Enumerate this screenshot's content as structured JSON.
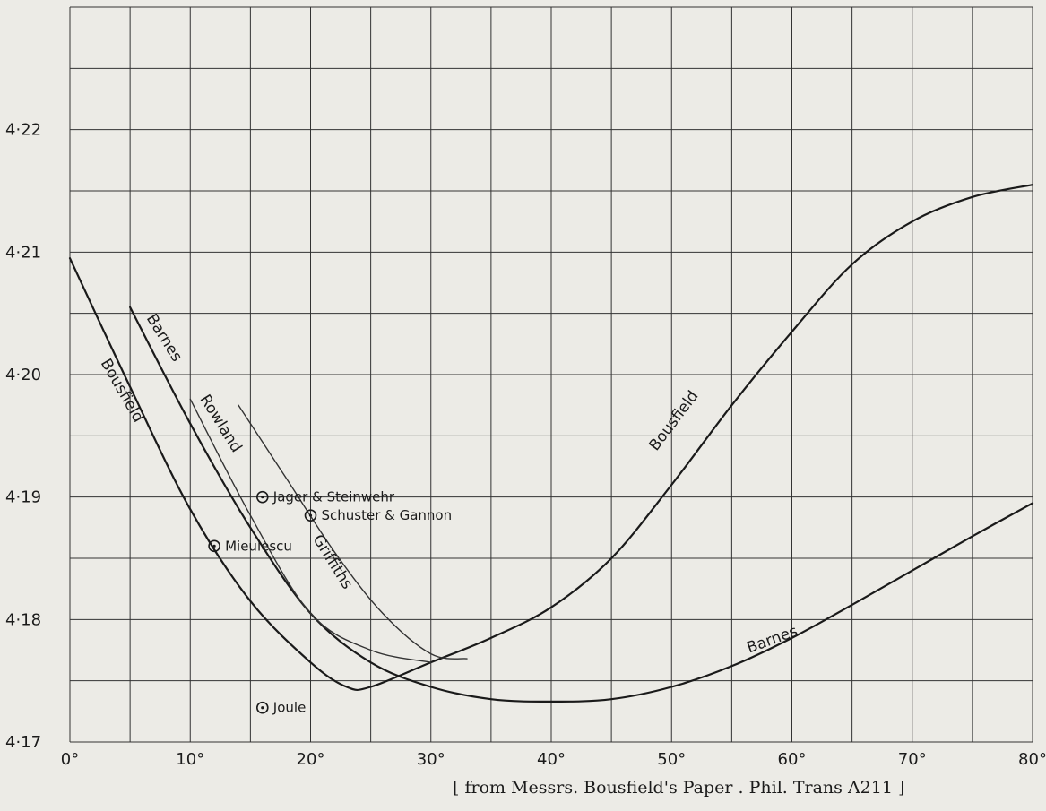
{
  "chart_data": {
    "type": "line",
    "title": "",
    "xlabel": "",
    "ylabel": "",
    "xlim": [
      0,
      80
    ],
    "ylim": [
      4.17,
      4.23
    ],
    "grid": true,
    "x_ticks": [
      "0°",
      "10°",
      "20°",
      "30°",
      "40°",
      "50°",
      "60°",
      "70°",
      "80°"
    ],
    "y_ticks": [
      "4·17",
      "4·18",
      "4·19",
      "4·20",
      "4·21",
      "4·22"
    ],
    "series": [
      {
        "name": "Bousfield",
        "style": "thick",
        "x": [
          0,
          5,
          10,
          15,
          20,
          23,
          25,
          30,
          35,
          40,
          45,
          50,
          55,
          60,
          65,
          70,
          75,
          80
        ],
        "y": [
          4.2095,
          4.199,
          4.189,
          4.1815,
          4.1765,
          4.1745,
          4.1745,
          4.1765,
          4.1785,
          4.181,
          4.185,
          4.191,
          4.1975,
          4.2035,
          4.209,
          4.2125,
          4.2145,
          4.2155
        ]
      },
      {
        "name": "Barnes",
        "style": "thick",
        "x": [
          5,
          10,
          15,
          20,
          25,
          30,
          35,
          40,
          45,
          50,
          55,
          60,
          65,
          70,
          75,
          80
        ],
        "y": [
          4.2055,
          4.196,
          4.1875,
          4.1805,
          4.1765,
          4.1745,
          4.1735,
          4.1733,
          4.1735,
          4.1745,
          4.1762,
          4.1785,
          4.1812,
          4.184,
          4.1868,
          4.1895
        ]
      },
      {
        "name": "Rowland",
        "style": "thin",
        "x": [
          10,
          15,
          20,
          25,
          30
        ],
        "y": [
          4.198,
          4.1885,
          4.1805,
          4.1775,
          4.1765
        ]
      },
      {
        "name": "Griffiths",
        "style": "thin",
        "x": [
          14,
          18,
          22,
          26,
          30,
          33
        ],
        "y": [
          4.1975,
          4.1915,
          4.1855,
          4.1805,
          4.1772,
          4.1768
        ]
      }
    ],
    "curve_labels": [
      {
        "text": "Bousfield",
        "x": 4,
        "y": 4.1985,
        "rotate": 60
      },
      {
        "text": "Barnes",
        "x": 7.5,
        "y": 4.2028,
        "rotate": 58
      },
      {
        "text": "Rowland",
        "x": 12.2,
        "y": 4.1958,
        "rotate": 58
      },
      {
        "text": "Griffiths",
        "x": 21.5,
        "y": 4.1845,
        "rotate": 58
      },
      {
        "text": "Bousfield",
        "x": 50.5,
        "y": 4.196,
        "rotate": -53
      },
      {
        "text": "Barnes",
        "x": 58.5,
        "y": 4.178,
        "rotate": -20
      }
    ],
    "points": [
      {
        "label": "Jager & Steinwehr",
        "x": 16,
        "y": 4.19
      },
      {
        "label": "Schuster & Gannon",
        "x": 20,
        "y": 4.1885
      },
      {
        "label": "Mieulescu",
        "x": 12,
        "y": 4.186
      },
      {
        "label": "Joule",
        "x": 16,
        "y": 4.1728
      }
    ],
    "annotation": "[ from Messrs. Bousfield's Paper . Phil. Trans A211 ]"
  }
}
